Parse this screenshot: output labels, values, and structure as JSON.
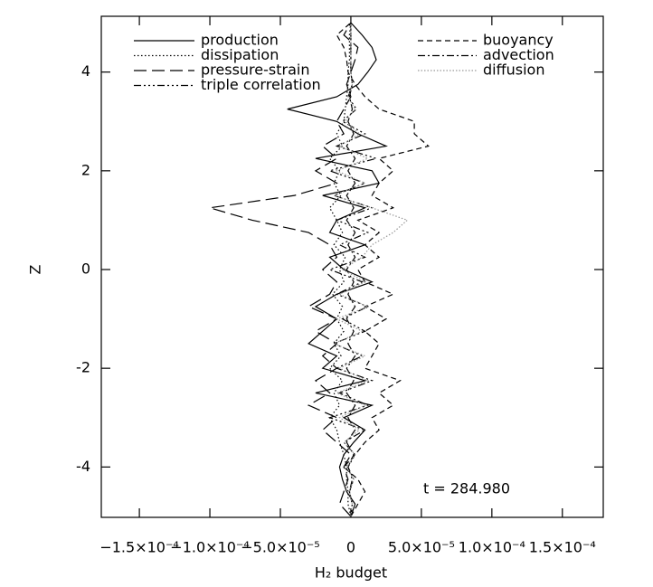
{
  "chart_data": {
    "type": "line",
    "x_label": "H₂ budget",
    "y_label": "Z",
    "annotation": "t = 284.980",
    "y": [
      -5,
      -4.75,
      -4.5,
      -4.25,
      -4,
      -3.75,
      -3.5,
      -3.25,
      -3,
      -2.75,
      -2.5,
      -2.25,
      -2,
      -1.75,
      -1.5,
      -1.25,
      -1,
      -0.75,
      -0.5,
      -0.25,
      0,
      0.25,
      0.5,
      0.75,
      1,
      1.25,
      1.5,
      1.75,
      2,
      2.25,
      2.5,
      2.75,
      3,
      3.25,
      3.5,
      3.75,
      4,
      4.25,
      4.5,
      4.75,
      5
    ],
    "series": [
      {
        "name": "production",
        "color": "#000000",
        "values": [
          0,
          3e-06,
          -3e-06,
          -6e-06,
          -8e-06,
          -5e-06,
          2e-06,
          1e-05,
          -5e-06,
          1.5e-05,
          -2.5e-05,
          1e-05,
          -2e-05,
          -1e-05,
          -3e-05,
          -2e-05,
          -1e-05,
          -2.5e-05,
          -1e-05,
          1.5e-05,
          -5e-06,
          -1.5e-05,
          1e-05,
          -1.5e-05,
          -1e-05,
          1e-05,
          -2e-05,
          2e-05,
          1.5e-05,
          -2.5e-05,
          2.5e-05,
          5e-06,
          -1e-05,
          -4.5e-05,
          -1e-05,
          5e-06,
          1.2e-05,
          1.8e-05,
          1.5e-05,
          8e-06,
          0
        ]
      },
      {
        "name": "dissipation",
        "color": "#000000",
        "values": [
          0,
          -2e-06,
          -2e-06,
          -3e-06,
          -3e-06,
          -5e-06,
          -8e-06,
          -1e-05,
          -1.5e-05,
          -8e-06,
          -1.2e-05,
          -6e-06,
          -1.5e-05,
          -7e-06,
          -1.2e-05,
          -5e-06,
          -1e-05,
          -6e-06,
          -1.3e-05,
          -5e-06,
          -8e-06,
          -4e-06,
          -1.2e-05,
          -6e-06,
          -1e-05,
          -1.5e-05,
          -7e-06,
          -1.2e-05,
          -8e-06,
          -1.5e-05,
          -6e-06,
          -1e-05,
          -5e-06,
          -4e-06,
          -3e-06,
          -2e-06,
          -2e-06,
          -1e-06,
          -1e-06,
          -1e-06,
          0
        ]
      },
      {
        "name": "pressure-strain",
        "color": "#000000",
        "values": [
          0,
          -8e-06,
          -5e-06,
          -2e-06,
          -5e-06,
          0,
          -1e-05,
          -2e-05,
          -1e-05,
          -3e-05,
          -1.5e-05,
          -2.5e-05,
          -1e-05,
          -2e-05,
          -1e-05,
          -2.5e-05,
          -1e-05,
          -3e-05,
          -1.5e-05,
          -1e-05,
          -2e-05,
          -1e-05,
          -1.5e-05,
          -3e-05,
          -7e-05,
          -0.0001,
          -4e-05,
          -1e-05,
          -2.5e-05,
          -1e-05,
          -2e-05,
          -5e-06,
          -1e-05,
          -5e-06,
          0,
          -3e-06,
          0,
          3e-06,
          5e-06,
          -5e-06,
          0
        ]
      },
      {
        "name": "triple correlation",
        "color": "#000000",
        "values": [
          0,
          1e-06,
          -1e-06,
          2e-06,
          -2e-06,
          3e-06,
          -5e-06,
          1e-05,
          -1.5e-05,
          1.2e-05,
          -8e-06,
          1.5e-05,
          -1e-05,
          8e-06,
          -1.2e-05,
          1e-05,
          -6e-06,
          1.2e-05,
          -1e-05,
          8e-06,
          -1.5e-05,
          1e-05,
          -8e-06,
          1.2e-05,
          -1e-05,
          1.5e-05,
          -1.2e-05,
          1e-05,
          -1.5e-05,
          1.8e-05,
          -1e-05,
          1e-05,
          -6e-06,
          4e-06,
          -2e-06,
          1e-06,
          0,
          0,
          0,
          0,
          0
        ]
      },
      {
        "name": "buoyancy",
        "color": "#000000",
        "values": [
          0,
          5e-06,
          1e-05,
          5e-06,
          -5e-06,
          3e-06,
          1e-05,
          2e-05,
          1.5e-05,
          3e-05,
          2e-05,
          3.5e-05,
          1e-05,
          1.5e-05,
          2e-05,
          1e-05,
          2.5e-05,
          1e-05,
          3e-05,
          1e-05,
          5e-06,
          2e-05,
          1e-05,
          2e-05,
          5e-06,
          3e-05,
          1.5e-05,
          2e-05,
          3e-05,
          2e-05,
          5.5e-05,
          4.5e-05,
          4.5e-05,
          2e-05,
          1e-05,
          3e-06,
          -2e-06,
          -3e-06,
          -5e-06,
          -1e-05,
          0
        ]
      },
      {
        "name": "advection",
        "color": "#000000",
        "values": [
          0,
          1e-06,
          -1e-06,
          1e-06,
          -2e-06,
          2e-06,
          -3e-06,
          3e-06,
          -2e-06,
          3e-06,
          -3e-06,
          2e-06,
          -3e-06,
          3e-06,
          -2e-06,
          2e-06,
          -3e-06,
          3e-06,
          -2e-06,
          2e-06,
          -3e-06,
          3e-06,
          -2e-06,
          3e-06,
          -3e-06,
          2e-06,
          -3e-06,
          3e-06,
          -2e-06,
          3e-06,
          -3e-06,
          2e-06,
          -2e-06,
          1e-06,
          -1e-06,
          1e-06,
          0,
          0,
          0,
          0,
          0
        ]
      },
      {
        "name": "diffusion",
        "color": "#999999",
        "values": [
          0,
          1e-06,
          -1e-06,
          2e-06,
          -3e-06,
          3e-06,
          -5e-06,
          6e-06,
          -8e-06,
          1e-05,
          -1e-05,
          1.2e-05,
          -8e-06,
          1e-05,
          -1.2e-05,
          8e-06,
          -1e-05,
          1.2e-05,
          -8e-06,
          1e-05,
          -6e-06,
          8e-06,
          1.5e-05,
          3e-05,
          4e-05,
          1.5e-05,
          -1.2e-05,
          1e-05,
          -1e-05,
          1.2e-05,
          -8e-06,
          6e-06,
          -4e-06,
          3e-06,
          -2e-06,
          1e-06,
          0,
          0,
          0,
          0,
          0
        ]
      }
    ],
    "xlim": [
      -0.000177,
      0.000179
    ],
    "xticks": [
      {
        "value": -0.00015,
        "label": "−1.5×10⁻⁴"
      },
      {
        "value": -0.0001,
        "label": "−1.0×10⁻⁴"
      },
      {
        "value": -5e-05,
        "label": "−5.0×10⁻⁵"
      },
      0,
      {
        "value": 5e-05,
        "label": "5.0×10⁻⁵"
      },
      {
        "value": 0.0001,
        "label": "1.0×10⁻⁴"
      },
      {
        "value": 0.00015,
        "label": "1.5×10⁻⁴"
      }
    ],
    "ylim": [
      -5.02,
      5.13
    ],
    "yticks": [
      -4,
      -2,
      0,
      2,
      4
    ]
  }
}
